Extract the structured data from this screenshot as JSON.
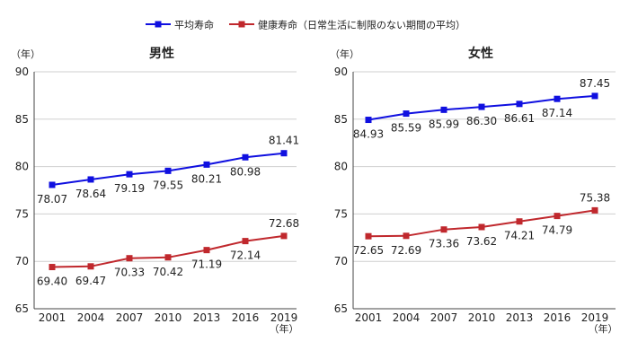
{
  "legend": [
    {
      "label": "平均寿命",
      "color": "#1010e0"
    },
    {
      "label": "健康寿命（日常生活に制限のない期間の平均）",
      "color": "#c0282d"
    }
  ],
  "chart_data": [
    {
      "type": "line",
      "title": "男性",
      "ylabel": "（年）",
      "xlabel": "（年）",
      "x": [
        "2001",
        "2004",
        "2007",
        "2010",
        "2013",
        "2016",
        "2019"
      ],
      "ylim": [
        65,
        90
      ],
      "yticks": [
        65,
        70,
        75,
        80,
        85,
        90
      ],
      "grid": true,
      "series": [
        {
          "name": "平均寿命",
          "color": "#1010e0",
          "values": [
            78.07,
            78.64,
            79.19,
            79.55,
            80.21,
            80.98,
            81.41
          ],
          "labels": [
            "78.07",
            "78.64",
            "79.19",
            "79.55",
            "80.21",
            "80.98",
            "81.41"
          ]
        },
        {
          "name": "健康寿命（日常生活に制限のない期間の平均）",
          "color": "#c0282d",
          "values": [
            69.4,
            69.47,
            70.33,
            70.42,
            71.19,
            72.14,
            72.68
          ],
          "labels": [
            "69.40",
            "69.47",
            "70.33",
            "70.42",
            "71.19",
            "72.14",
            "72.68"
          ]
        }
      ]
    },
    {
      "type": "line",
      "title": "女性",
      "ylabel": "（年）",
      "xlabel": "（年）",
      "x": [
        "2001",
        "2004",
        "2007",
        "2010",
        "2013",
        "2016",
        "2019"
      ],
      "ylim": [
        65,
        90
      ],
      "yticks": [
        65,
        70,
        75,
        80,
        85,
        90
      ],
      "grid": true,
      "series": [
        {
          "name": "平均寿命",
          "color": "#1010e0",
          "values": [
            84.93,
            85.59,
            85.99,
            86.3,
            86.61,
            87.14,
            87.45
          ],
          "labels": [
            "84.93",
            "85.59",
            "85.99",
            "86.30",
            "86.61",
            "87.14",
            "87.45"
          ]
        },
        {
          "name": "健康寿命（日常生活に制限のない期間の平均）",
          "color": "#c0282d",
          "values": [
            72.65,
            72.69,
            73.36,
            73.62,
            74.21,
            74.79,
            75.38
          ],
          "labels": [
            "72.65",
            "72.69",
            "73.36",
            "73.62",
            "74.21",
            "74.79",
            "75.38"
          ]
        }
      ]
    }
  ]
}
